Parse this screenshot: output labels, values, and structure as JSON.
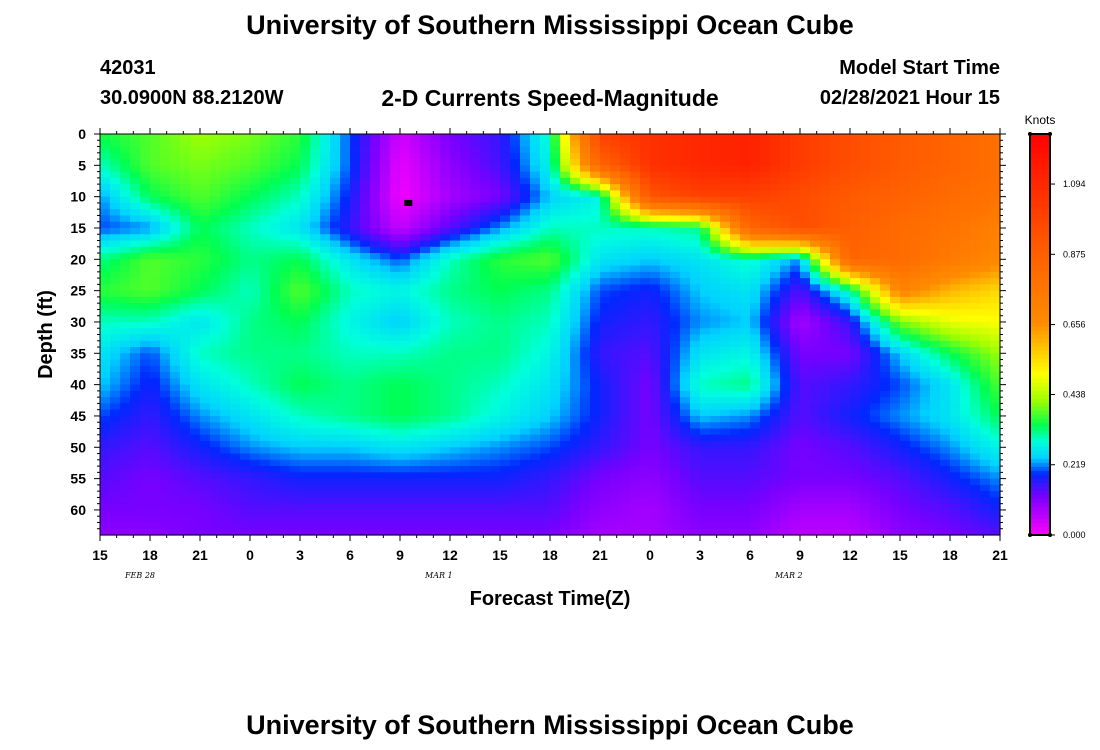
{
  "header": {
    "title": "University of Southern Mississippi Ocean Cube",
    "station_id": "42031",
    "coords": "30.0900N 88.2120W",
    "model_start_label": "Model Start Time",
    "model_start_value": "02/28/2021 Hour 15",
    "footer_title": "University of Southern Mississippi Ocean Cube"
  },
  "chart_data": {
    "type": "heatmap",
    "title": "2-D Currents Speed-Magnitude",
    "xlabel": "Forecast Time(Z)",
    "ylabel": "Depth (ft)",
    "x_ticks": [
      "15",
      "18",
      "21",
      "0",
      "3",
      "6",
      "9",
      "12",
      "15",
      "18",
      "21",
      "0",
      "3",
      "6",
      "9",
      "12",
      "15",
      "18",
      "21"
    ],
    "date_labels": [
      {
        "label": "FEB 28",
        "tick_index": 1
      },
      {
        "label": "MAR 1",
        "tick_index": 7
      },
      {
        "label": "MAR 2",
        "tick_index": 14
      }
    ],
    "y_ticks": [
      0,
      5,
      10,
      15,
      20,
      25,
      30,
      35,
      40,
      45,
      50,
      55,
      60
    ],
    "ylim": [
      0,
      64
    ],
    "xlim_hours": [
      0,
      54
    ],
    "colorbar": {
      "label": "Knots",
      "ticks": [
        0.0,
        0.219,
        0.438,
        0.656,
        0.875,
        1.094
      ],
      "tick_labels": [
        "0.000",
        "0.219",
        "0.438",
        "0.656",
        "0.875",
        "1.094"
      ],
      "range": [
        0,
        1.25
      ]
    },
    "grid_hours": [
      0,
      3,
      6,
      9,
      12,
      15,
      18,
      21,
      24,
      27,
      30,
      33,
      36,
      39,
      42,
      45,
      48,
      51,
      54
    ],
    "grid_depths": [
      0,
      5,
      10,
      15,
      20,
      25,
      30,
      35,
      40,
      45,
      50,
      55,
      60,
      64
    ],
    "values": [
      [
        0.35,
        0.38,
        0.42,
        0.4,
        0.36,
        0.2,
        0.04,
        0.12,
        0.16,
        0.3,
        1.0,
        1.06,
        1.1,
        1.12,
        1.02,
        0.95,
        0.9,
        0.85,
        0.8
      ],
      [
        0.3,
        0.38,
        0.4,
        0.38,
        0.34,
        0.2,
        0.02,
        0.1,
        0.15,
        0.28,
        0.85,
        1.06,
        1.1,
        1.12,
        1.02,
        0.95,
        0.9,
        0.85,
        0.8
      ],
      [
        0.22,
        0.34,
        0.38,
        0.34,
        0.3,
        0.18,
        0.01,
        0.08,
        0.12,
        0.24,
        0.28,
        0.92,
        1.0,
        1.0,
        0.96,
        0.9,
        0.86,
        0.82,
        0.78
      ],
      [
        0.2,
        0.22,
        0.34,
        0.3,
        0.26,
        0.16,
        0.05,
        0.14,
        0.22,
        0.3,
        0.3,
        0.3,
        0.32,
        0.85,
        0.95,
        0.88,
        0.82,
        0.78,
        0.72
      ],
      [
        0.32,
        0.38,
        0.36,
        0.32,
        0.34,
        0.26,
        0.2,
        0.3,
        0.36,
        0.38,
        0.26,
        0.24,
        0.26,
        0.3,
        0.22,
        0.85,
        0.82,
        0.75,
        0.68
      ],
      [
        0.36,
        0.38,
        0.34,
        0.3,
        0.38,
        0.3,
        0.28,
        0.32,
        0.34,
        0.32,
        0.2,
        0.18,
        0.24,
        0.26,
        0.14,
        0.3,
        0.7,
        0.6,
        0.55
      ],
      [
        0.3,
        0.3,
        0.26,
        0.32,
        0.34,
        0.28,
        0.24,
        0.3,
        0.32,
        0.3,
        0.18,
        0.16,
        0.22,
        0.24,
        0.08,
        0.16,
        0.4,
        0.48,
        0.5
      ],
      [
        0.26,
        0.2,
        0.3,
        0.32,
        0.32,
        0.3,
        0.3,
        0.32,
        0.32,
        0.28,
        0.16,
        0.14,
        0.26,
        0.28,
        0.12,
        0.12,
        0.24,
        0.34,
        0.42
      ],
      [
        0.24,
        0.18,
        0.26,
        0.3,
        0.34,
        0.32,
        0.34,
        0.32,
        0.3,
        0.26,
        0.18,
        0.12,
        0.3,
        0.32,
        0.14,
        0.16,
        0.2,
        0.26,
        0.38
      ],
      [
        0.2,
        0.16,
        0.22,
        0.26,
        0.3,
        0.32,
        0.34,
        0.32,
        0.28,
        0.24,
        0.18,
        0.12,
        0.24,
        0.22,
        0.14,
        0.18,
        0.22,
        0.26,
        0.34
      ],
      [
        0.16,
        0.14,
        0.18,
        0.22,
        0.24,
        0.24,
        0.26,
        0.24,
        0.22,
        0.2,
        0.16,
        0.12,
        0.16,
        0.16,
        0.12,
        0.14,
        0.18,
        0.22,
        0.28
      ],
      [
        0.14,
        0.12,
        0.14,
        0.16,
        0.18,
        0.18,
        0.18,
        0.18,
        0.18,
        0.16,
        0.12,
        0.1,
        0.14,
        0.14,
        0.12,
        0.12,
        0.14,
        0.18,
        0.22
      ],
      [
        0.12,
        0.12,
        0.12,
        0.14,
        0.14,
        0.14,
        0.14,
        0.14,
        0.14,
        0.14,
        0.1,
        0.08,
        0.12,
        0.12,
        0.08,
        0.08,
        0.12,
        0.14,
        0.18
      ],
      [
        0.1,
        0.1,
        0.12,
        0.12,
        0.12,
        0.12,
        0.12,
        0.12,
        0.12,
        0.12,
        0.08,
        0.08,
        0.1,
        0.1,
        0.06,
        0.06,
        0.1,
        0.12,
        0.14
      ]
    ],
    "marker": {
      "hour": 18.5,
      "depth": 11
    }
  }
}
